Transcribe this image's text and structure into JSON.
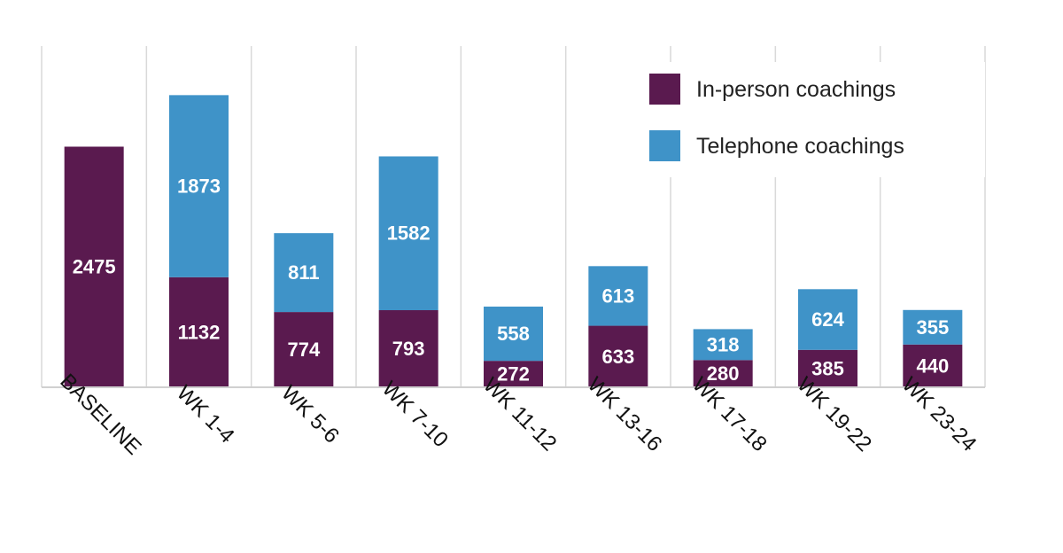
{
  "chart_data": {
    "type": "bar",
    "stacked": true,
    "categories": [
      "BASELINE",
      "WK 1-4",
      "WK 5-6",
      "WK 7-10",
      "WK 11-12",
      "WK 13-16",
      "WK 17-18",
      "WK 19-22",
      "WK 23-24"
    ],
    "series": [
      {
        "name": "In-person coachings",
        "color": "#5a1a4f",
        "values": [
          2475,
          1132,
          774,
          793,
          272,
          633,
          280,
          385,
          440
        ]
      },
      {
        "name": "Telephone coachings",
        "color": "#3f93c8",
        "values": [
          null,
          1873,
          811,
          1582,
          558,
          613,
          318,
          624,
          355
        ]
      }
    ],
    "ylim": [
      0,
      3050
    ],
    "legend_position": "top-right",
    "grid": "vertical lines between categories",
    "xlabel": "",
    "ylabel": ""
  }
}
